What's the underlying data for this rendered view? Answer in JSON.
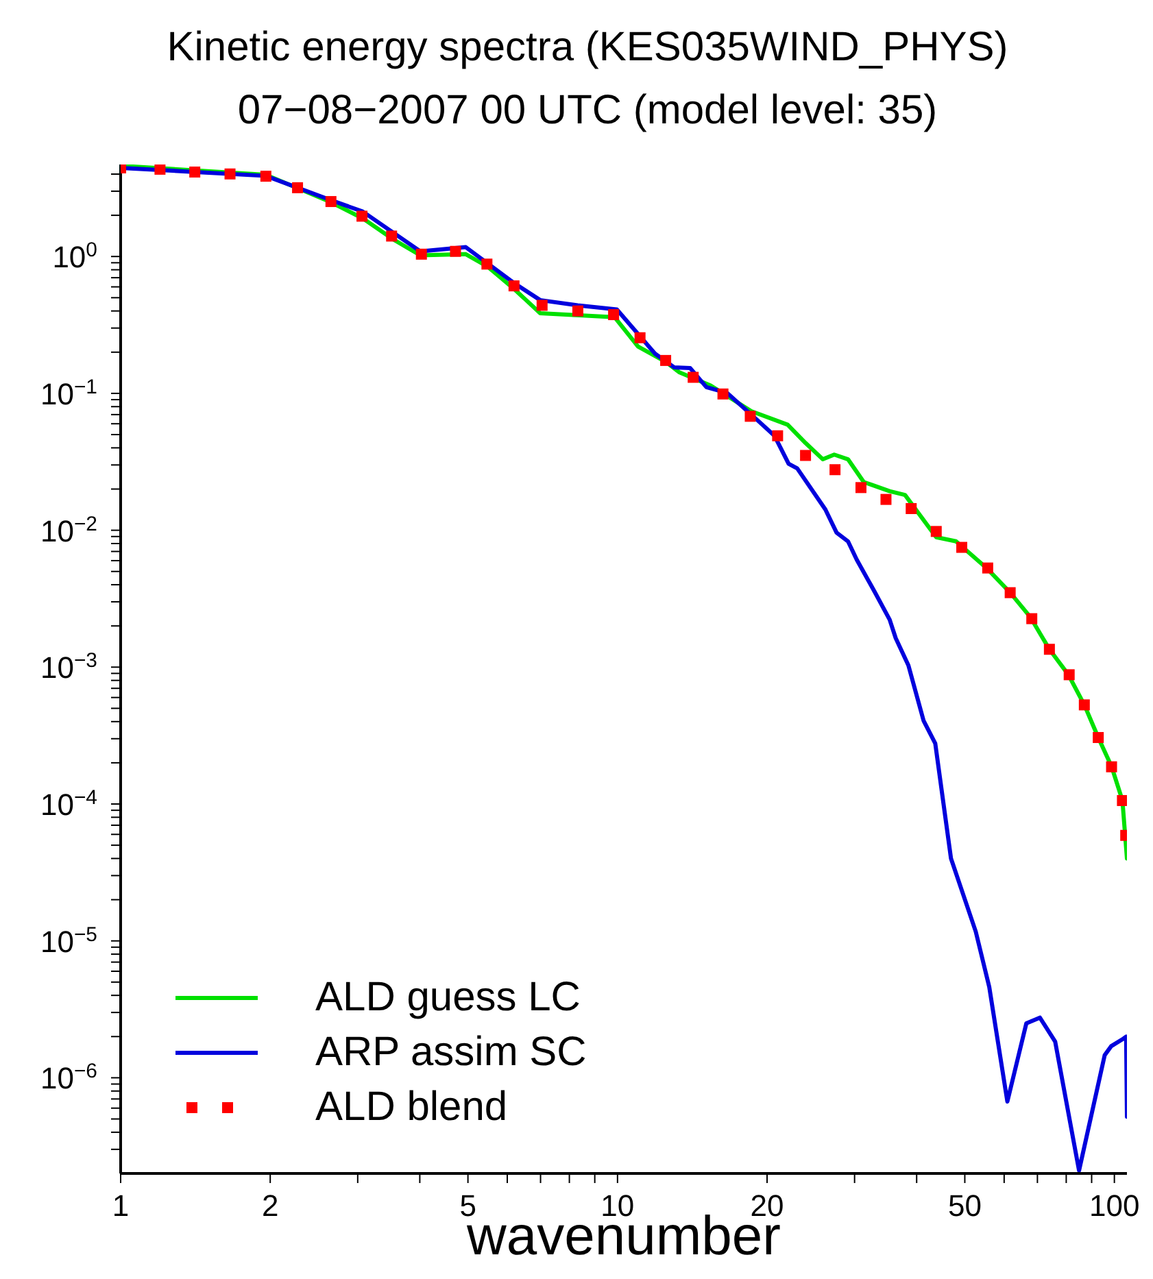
{
  "chart_data": {
    "type": "line",
    "title": "Kinetic energy spectra (KES035WIND_PHYS)",
    "subtitle": "07−08−2007 00 UTC (model level: 35)",
    "xlabel": "wavenumber",
    "log": "xy",
    "legend": "bottom left",
    "xlim": [
      1,
      106
    ],
    "ylim": [
      2e-07,
      4.7
    ],
    "xticks": [
      1,
      2,
      {
        "value": 3,
        "label": null
      },
      {
        "value": 4,
        "label": null
      },
      5,
      {
        "value": 6,
        "label": null
      },
      {
        "value": 7,
        "label": null
      },
      {
        "value": 8,
        "label": null
      },
      {
        "value": 9,
        "label": null
      },
      10,
      20,
      {
        "value": 30,
        "label": null
      },
      {
        "value": 40,
        "label": null
      },
      50,
      {
        "value": 60,
        "label": null
      },
      {
        "value": 70,
        "label": null
      },
      {
        "value": 80,
        "label": null
      },
      {
        "value": 90,
        "label": null
      },
      100
    ],
    "yticks": [
      {
        "value": 3e-07,
        "label": null
      },
      {
        "value": 4e-07,
        "label": null
      },
      {
        "value": 5e-07,
        "label": null
      },
      {
        "value": 6e-07,
        "label": null
      },
      {
        "value": 7e-07,
        "label": null
      },
      {
        "value": 8e-07,
        "label": null
      },
      {
        "value": 9e-07,
        "label": null
      },
      {
        "value": 1e-06,
        "label": "10$^{−6}$"
      },
      {
        "value": 2e-06,
        "label": null
      },
      {
        "value": 3e-06,
        "label": null
      },
      {
        "value": 4e-06,
        "label": null
      },
      {
        "value": 5e-06,
        "label": null
      },
      {
        "value": 6e-06,
        "label": null
      },
      {
        "value": 7e-06,
        "label": null
      },
      {
        "value": 8e-06,
        "label": null
      },
      {
        "value": 9e-06,
        "label": null
      },
      {
        "value": 1e-05,
        "label": "10$^{−5}$"
      },
      {
        "value": 2e-05,
        "label": null
      },
      {
        "value": 3e-05,
        "label": null
      },
      {
        "value": 4e-05,
        "label": null
      },
      {
        "value": 5e-05,
        "label": null
      },
      {
        "value": 6e-05,
        "label": null
      },
      {
        "value": 7e-05,
        "label": null
      },
      {
        "value": 8e-05,
        "label": null
      },
      {
        "value": 9e-05,
        "label": null
      },
      {
        "value": 0.0001,
        "label": "10$^{−4}$"
      },
      {
        "value": 0.0002,
        "label": null
      },
      {
        "value": 0.0003,
        "label": null
      },
      {
        "value": 0.0004,
        "label": null
      },
      {
        "value": 0.0005,
        "label": null
      },
      {
        "value": 0.0006,
        "label": null
      },
      {
        "value": 0.0007,
        "label": null
      },
      {
        "value": 0.0008,
        "label": null
      },
      {
        "value": 0.0009,
        "label": null
      },
      {
        "value": 0.001,
        "label": "10$^{−3}$"
      },
      {
        "value": 0.002,
        "label": null
      },
      {
        "value": 0.003,
        "label": null
      },
      {
        "value": 0.004,
        "label": null
      },
      {
        "value": 0.005,
        "label": null
      },
      {
        "value": 0.006,
        "label": null
      },
      {
        "value": 0.007,
        "label": null
      },
      {
        "value": 0.008,
        "label": null
      },
      {
        "value": 0.009,
        "label": null
      },
      {
        "value": 0.01,
        "label": "10$^{−2}$"
      },
      {
        "value": 0.02,
        "label": null
      },
      {
        "value": 0.03,
        "label": null
      },
      {
        "value": 0.04,
        "label": null
      },
      {
        "value": 0.05,
        "label": null
      },
      {
        "value": 0.06,
        "label": null
      },
      {
        "value": 0.07,
        "label": null
      },
      {
        "value": 0.08,
        "label": null
      },
      {
        "value": 0.09,
        "label": null
      },
      {
        "value": 0.1,
        "label": "10$^{−1}$"
      },
      {
        "value": 0.2,
        "label": null
      },
      {
        "value": 0.3,
        "label": null
      },
      {
        "value": 0.4,
        "label": null
      },
      {
        "value": 0.5,
        "label": null
      },
      {
        "value": 0.6,
        "label": null
      },
      {
        "value": 0.7,
        "label": null
      },
      {
        "value": 0.8,
        "label": null
      },
      {
        "value": 0.9,
        "label": null
      },
      {
        "value": 1,
        "label": "10$^{0}$"
      },
      {
        "value": 2,
        "label": null
      },
      {
        "value": 3,
        "label": null
      },
      {
        "value": 4,
        "label": null
      }
    ],
    "series": [
      {
        "name": "ALD guess LC",
        "color": "#00e000",
        "x": [
          1,
          1.96,
          2.65,
          3.07,
          3.53,
          4.01,
          4.95,
          5.46,
          6.19,
          6.99,
          9.87,
          11,
          12.5,
          13.3,
          15.4,
          18.6,
          22,
          23.9,
          25.9,
          27.3,
          29.1,
          31.3,
          35.3,
          37.9,
          43.8,
          48,
          55.6,
          61.7,
          67.8,
          74,
          80.8,
          87,
          92.8,
          98.7,
          103.8,
          106
        ],
        "values": [
          4.6,
          3.95,
          2.49,
          1.9,
          1.34,
          1.02,
          1.04,
          0.85,
          0.58,
          0.385,
          0.36,
          0.22,
          0.17,
          0.143,
          0.114,
          0.074,
          0.059,
          0.0434,
          0.033,
          0.0357,
          0.033,
          0.0225,
          0.0193,
          0.0181,
          0.0089,
          0.0083,
          0.0052,
          0.0035,
          0.00231,
          0.00135,
          0.00088,
          0.00053,
          0.000306,
          0.000188,
          0.000106,
          4e-05
        ]
      },
      {
        "name": "ARP assim SC",
        "color": "#0000dd",
        "x": [
          1,
          1.96,
          2.65,
          3.07,
          4.01,
          4.95,
          6.19,
          6.99,
          8.32,
          9.97,
          11.9,
          13,
          14,
          15.1,
          16.6,
          19.1,
          20.7,
          22.1,
          23,
          26.2,
          27.6,
          29.1,
          30.3,
          33,
          35.3,
          36.3,
          38.5,
          41.3,
          43.6,
          46.9,
          52.6,
          56,
          60.9,
          66.5,
          70.8,
          76,
          84.9,
          95.6,
          98.5,
          103.8,
          105.6,
          106
        ],
        "values": [
          4.44,
          3.88,
          2.58,
          2.13,
          1.09,
          1.17,
          0.64,
          0.48,
          0.44,
          0.41,
          0.195,
          0.155,
          0.153,
          0.111,
          0.101,
          0.064,
          0.049,
          0.0306,
          0.0283,
          0.0142,
          0.0096,
          0.0083,
          0.0061,
          0.0035,
          0.00222,
          0.00163,
          0.00103,
          0.000407,
          0.000277,
          4e-05,
          1.17e-05,
          4.6e-06,
          6.7e-07,
          2.5e-06,
          2.75e-06,
          1.84e-06,
          2.1e-07,
          1.46e-06,
          1.7e-06,
          1.91e-06,
          2e-06,
          5.2e-07
        ]
      },
      {
        "name": "ALD blend",
        "type": "scatter",
        "marker": "square",
        "color": "#ff0000",
        "x": [
          1,
          1.2,
          1.41,
          1.66,
          1.96,
          2.27,
          2.65,
          3.06,
          3.51,
          4.03,
          4.72,
          5.46,
          6.19,
          7.05,
          8.32,
          9.82,
          11.1,
          12.5,
          14.2,
          16.3,
          18.5,
          21,
          23.9,
          27.4,
          30.9,
          34.7,
          39,
          43.8,
          49.3,
          55.6,
          61.7,
          68.2,
          74,
          81.1,
          87,
          92.8,
          98.7,
          103.8,
          105.4
        ],
        "values": [
          4.44,
          4.34,
          4.14,
          4.01,
          3.86,
          3.18,
          2.52,
          1.97,
          1.41,
          1.04,
          1.09,
          0.88,
          0.61,
          0.44,
          0.4,
          0.376,
          0.255,
          0.174,
          0.131,
          0.099,
          0.068,
          0.049,
          0.0352,
          0.0277,
          0.0205,
          0.0168,
          0.0144,
          0.0098,
          0.0075,
          0.0053,
          0.0035,
          0.00226,
          0.00135,
          0.00088,
          0.00053,
          0.000306,
          0.000187,
          0.000106,
          5.9e-05
        ]
      }
    ]
  }
}
